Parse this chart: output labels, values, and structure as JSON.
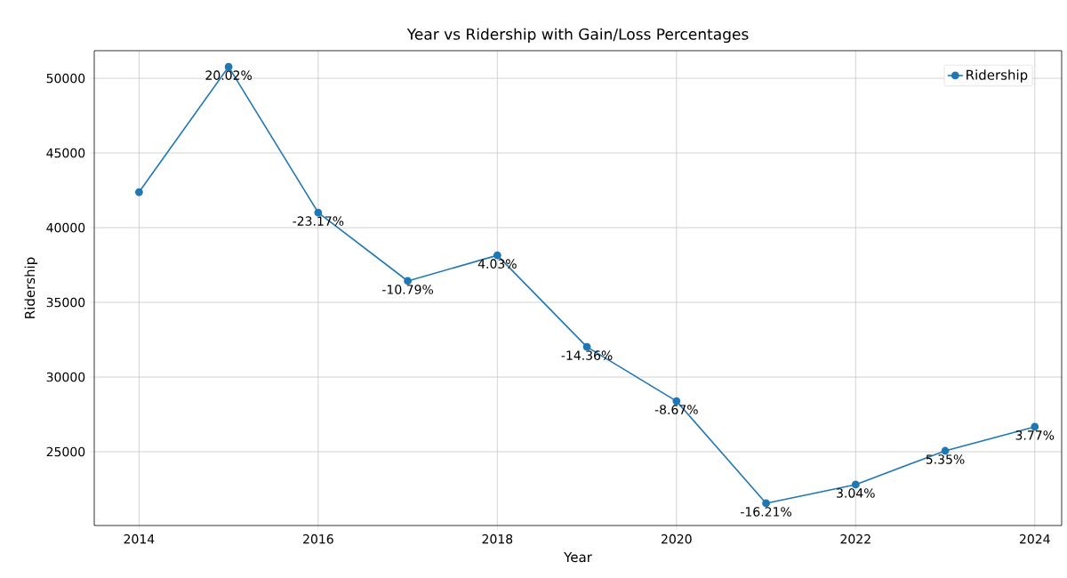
{
  "chart_data": {
    "type": "line",
    "title": "Year vs Ridership with Gain/Loss Percentages",
    "xlabel": "Year",
    "ylabel": "Ridership",
    "x": [
      2014,
      2015,
      2016,
      2017,
      2018,
      2019,
      2020,
      2021,
      2022,
      2023,
      2024
    ],
    "series": [
      {
        "name": "Ridership",
        "color": "#1f77b4",
        "values": [
          42380,
          50770,
          41010,
          36430,
          38150,
          32020,
          28390,
          21550,
          22800,
          25060,
          26670
        ]
      }
    ],
    "annotations": [
      {
        "text": "20.02%",
        "x": 2015,
        "y": 50770
      },
      {
        "text": "-23.17%",
        "x": 2016,
        "y": 41010
      },
      {
        "text": "-10.79%",
        "x": 2017,
        "y": 36430
      },
      {
        "text": "4.03%",
        "x": 2018,
        "y": 38150
      },
      {
        "text": "-14.36%",
        "x": 2019,
        "y": 32020
      },
      {
        "text": "-8.67%",
        "x": 2020,
        "y": 28390
      },
      {
        "text": "-16.21%",
        "x": 2021,
        "y": 21550
      },
      {
        "text": "3.04%",
        "x": 2022,
        "y": 22800
      },
      {
        "text": "5.35%",
        "x": 2023,
        "y": 25060
      },
      {
        "text": "3.77%",
        "x": 2024,
        "y": 26670
      }
    ],
    "xlim": [
      2013.5,
      2024.3
    ],
    "ylim": [
      20060,
      51850
    ],
    "xticks": [
      2014,
      2016,
      2018,
      2020,
      2022,
      2024
    ],
    "yticks": [
      25000,
      30000,
      35000,
      40000,
      45000,
      50000
    ],
    "grid": true,
    "legend": "top right",
    "marker": "circle",
    "line_style": "solid"
  }
}
